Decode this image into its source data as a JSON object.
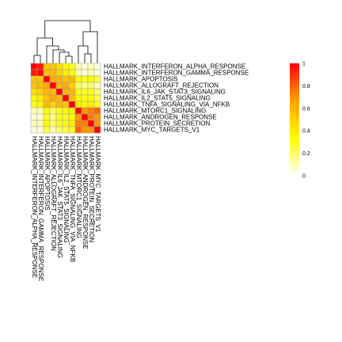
{
  "chart_data": {
    "type": "heatmap",
    "title": "",
    "xlabel": "",
    "ylabel": "",
    "row_labels": [
      "HALLMARK_INTERFERON_ALPHA_RESPONSE",
      "HALLMARK_INTERFERON_GAMMA_RESPONSE",
      "HALLMARK_APOPTOSIS",
      "HALLMARK_ALLOGRAFT_REJECTION",
      "HALLMARK_IL6_JAK_STAT3_SIGNALING",
      "HALLMARK_IL2_STAT5_SIGNALING",
      "HALLMARK_TNFA_SIGNALING_VIA_NFKB",
      "HALLMARK_MTORC1_SIGNALING",
      "HALLMARK_ANDROGEN_RESPONSE",
      "HALLMARK_PROTEIN_SECRETION",
      "HALLMARK_MYC_TARGETS_V1"
    ],
    "col_labels": [
      "HALLMARK_INTERFERON_ALPHA_RESPONSE",
      "HALLMARK_INTERFERON_GAMMA_RESPONSE",
      "HALLMARK_APOPTOSIS",
      "HALLMARK_ALLOGRAFT_REJECTION",
      "HALLMARK_IL6_JAK_STAT3_SIGNALING",
      "HALLMARK_IL2_STAT5_SIGNALING",
      "HALLMARK_TNFA_SIGNALING_VIA_NFKB",
      "HALLMARK_MTORC1_SIGNALING",
      "HALLMARK_ANDROGEN_RESPONSE",
      "HALLMARK_PROTEIN_SECRETION",
      "HALLMARK_MYC_TARGETS_V1"
    ],
    "values": [
      [
        1.0,
        0.95,
        0.55,
        0.55,
        0.45,
        0.35,
        0.3,
        0.1,
        0.05,
        0.1,
        0.05
      ],
      [
        0.95,
        1.0,
        0.55,
        0.6,
        0.5,
        0.4,
        0.35,
        0.1,
        0.05,
        0.1,
        0.05
      ],
      [
        0.55,
        0.55,
        1.0,
        0.65,
        0.6,
        0.55,
        0.6,
        0.35,
        0.3,
        0.35,
        0.25
      ],
      [
        0.55,
        0.6,
        0.65,
        1.0,
        0.6,
        0.65,
        0.5,
        0.2,
        0.15,
        0.2,
        0.1
      ],
      [
        0.45,
        0.5,
        0.6,
        0.6,
        1.0,
        0.6,
        0.6,
        0.3,
        0.3,
        0.3,
        0.2
      ],
      [
        0.35,
        0.4,
        0.55,
        0.65,
        0.6,
        1.0,
        0.55,
        0.35,
        0.3,
        0.35,
        0.25
      ],
      [
        0.3,
        0.35,
        0.6,
        0.5,
        0.6,
        0.55,
        1.0,
        0.4,
        0.35,
        0.4,
        0.3
      ],
      [
        0.1,
        0.1,
        0.35,
        0.2,
        0.3,
        0.35,
        0.4,
        1.0,
        0.7,
        0.75,
        0.8
      ],
      [
        0.05,
        0.05,
        0.3,
        0.15,
        0.3,
        0.3,
        0.35,
        0.7,
        1.0,
        0.75,
        0.7
      ],
      [
        0.1,
        0.1,
        0.35,
        0.2,
        0.3,
        0.35,
        0.4,
        0.75,
        0.75,
        1.0,
        0.7
      ],
      [
        0.05,
        0.05,
        0.25,
        0.1,
        0.2,
        0.25,
        0.3,
        0.8,
        0.7,
        0.7,
        1.0
      ]
    ],
    "color_scale": {
      "stops": [
        "#ffffff",
        "#ffff00",
        "#ffa500",
        "#ff0000"
      ],
      "range": [
        0,
        1
      ],
      "ticks": [
        0,
        0.2,
        0.4,
        0.6,
        0.8,
        1
      ],
      "tick_labels": [
        "0",
        "0.2",
        "0.4",
        "0.6",
        "0.8",
        "1"
      ]
    },
    "dendrogram": "top",
    "legend_position": "right"
  }
}
